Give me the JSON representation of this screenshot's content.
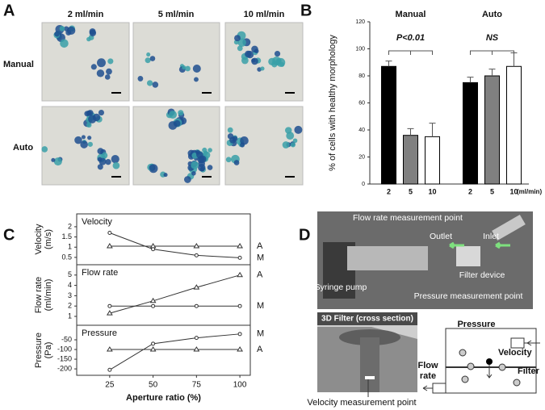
{
  "panel_labels": [
    "A",
    "B",
    "C",
    "D"
  ],
  "panel_a": {
    "columns": [
      "2 ml/min",
      "5 ml/min",
      "10 ml/min"
    ],
    "rows": [
      "Manual",
      "Auto"
    ]
  },
  "chart_data": [
    {
      "type": "bar",
      "ylabel": "% of cells with healthy morphology",
      "categories": [
        "Manual",
        "Auto"
      ],
      "x_unit": "(ml/min)",
      "annotations": [
        "P<0.01",
        "NS"
      ],
      "series": [
        {
          "name": "2",
          "color": "#000000",
          "values": [
            87,
            75
          ],
          "errors": [
            4,
            4
          ]
        },
        {
          "name": "5",
          "color": "#808080",
          "values": [
            36,
            80
          ],
          "errors": [
            5,
            5
          ]
        },
        {
          "name": "10",
          "color": "#ffffff",
          "values": [
            35,
            87
          ],
          "errors": [
            10,
            10
          ]
        }
      ],
      "ylim": [
        0,
        120
      ],
      "yticks": [
        0,
        20,
        40,
        60,
        80,
        100,
        120
      ]
    },
    {
      "type": "line",
      "title": "Velocity",
      "ylabel": [
        "Velocity",
        "(m/s)"
      ],
      "x": [
        25,
        50,
        75,
        100
      ],
      "xlim": [
        6,
        106
      ],
      "ylim": [
        0.14,
        2.63
      ],
      "yticks": [
        0.5,
        1,
        1.5,
        2
      ],
      "series": [
        {
          "name": "A",
          "marker": "triangle",
          "color": "#333333",
          "values": [
            1.05,
            1.05,
            1.05,
            1.05
          ]
        },
        {
          "name": "M",
          "marker": "circle",
          "color": "#333333",
          "values": [
            1.7,
            0.9,
            0.6,
            0.48
          ]
        }
      ]
    },
    {
      "type": "line",
      "title": "Flow rate",
      "ylabel": [
        "Flow rate",
        "(ml/min)"
      ],
      "x": [
        25,
        50,
        75,
        100
      ],
      "xlim": [
        6,
        106
      ],
      "ylim": [
        0.14,
        6.0
      ],
      "yticks": [
        1,
        2,
        3,
        4,
        5
      ],
      "series": [
        {
          "name": "A",
          "marker": "triangle",
          "color": "#333333",
          "values": [
            1.3,
            2.5,
            3.8,
            5
          ]
        },
        {
          "name": "M",
          "marker": "circle",
          "color": "#333333",
          "values": [
            2,
            2,
            2,
            2
          ]
        }
      ]
    },
    {
      "type": "line",
      "title": "Pressure",
      "ylabel": [
        "Pressure",
        "(Pa)"
      ],
      "x": [
        25,
        50,
        75,
        100
      ],
      "xlim": [
        6,
        106
      ],
      "ylim": [
        -233,
        25
      ],
      "yticks": [
        -200,
        -150,
        -100,
        -50
      ],
      "xticks": [
        25,
        50,
        75,
        100
      ],
      "xlabel": "Aperture ratio (%)",
      "series": [
        {
          "name": "M",
          "marker": "circle",
          "color": "#333333",
          "values": [
            -205,
            -70,
            -40,
            -20
          ]
        },
        {
          "name": "A",
          "marker": "triangle",
          "color": "#333333",
          "values": [
            -100,
            -100,
            -100,
            -100
          ]
        }
      ]
    }
  ],
  "panel_d": {
    "photo_labels": [
      "Flow rate measurement point",
      "Outlet",
      "Inlet",
      "Syringe pump",
      "Filter device",
      "Pressure measurement point"
    ],
    "cross_section_title": "3D Filter (cross section)",
    "cross_section_label": "Velocity measurement point",
    "diagram": {
      "pressure": "Pressure",
      "velocity": "Velocity",
      "filter": "Filter",
      "flow_rate": [
        "Flow",
        "rate"
      ]
    }
  }
}
